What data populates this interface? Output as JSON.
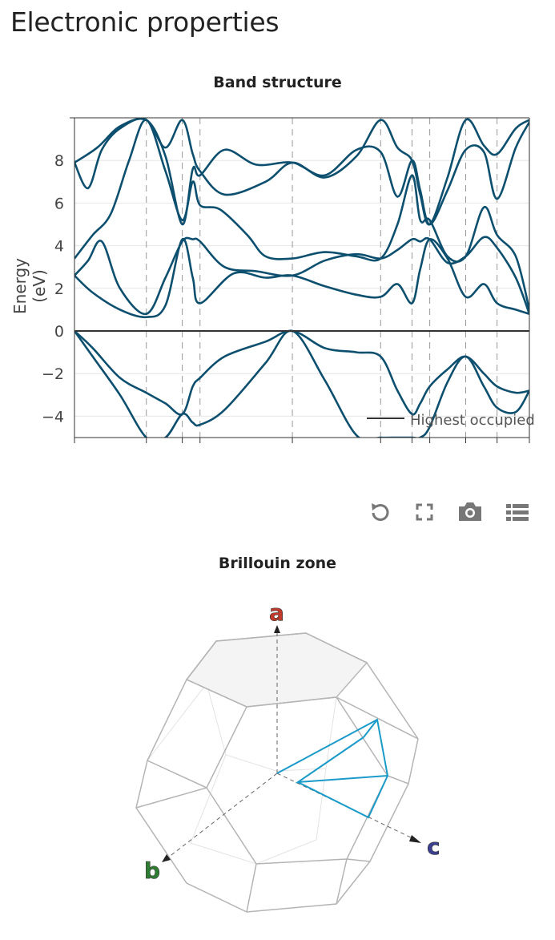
{
  "page": {
    "title": "Electronic properties"
  },
  "band_chart": {
    "title": "Band structure",
    "ylabel": "Energy (eV)",
    "legend": "Highest occupied",
    "toolbar": [
      "reset-icon",
      "fullscreen-icon",
      "camera-icon",
      "list-icon"
    ]
  },
  "chart_data": {
    "type": "line",
    "title": "Band structure",
    "ylabel": "Energy (eV)",
    "xlabel": "",
    "ylim": [
      -5,
      10
    ],
    "yticks": [
      -4,
      -2,
      0,
      2,
      4,
      6,
      8
    ],
    "ytick_labels": [
      "−4",
      "−2",
      "0",
      "2",
      "4",
      "6",
      "8"
    ],
    "xlim": [
      0,
      1
    ],
    "kpoint_dividers": [
      0.158,
      0.237,
      0.276,
      0.479,
      0.673,
      0.742,
      0.781,
      0.86,
      0.929
    ],
    "reference_line": {
      "name": "Highest occupied",
      "y": 0
    },
    "legend_position": "bottom-right",
    "grid": true,
    "series": [
      {
        "x": [
          0,
          0.04,
          0.1,
          0.158,
          0.2,
          0.237,
          0.26,
          0.276,
          0.35,
          0.42,
          0.479,
          0.55,
          0.62,
          0.673,
          0.71,
          0.742,
          0.76,
          0.781,
          0.82,
          0.86,
          0.9,
          0.929,
          0.97,
          1.0
        ],
        "y": [
          2.6,
          1.8,
          1.0,
          0.65,
          1.2,
          4.3,
          2.5,
          1.3,
          2.7,
          2.5,
          2.6,
          2.1,
          1.7,
          1.6,
          2.2,
          1.3,
          2.9,
          4.3,
          3.4,
          1.6,
          2.2,
          1.3,
          1.0,
          0.8
        ]
      },
      {
        "x": [
          0,
          0.03,
          0.06,
          0.1,
          0.158,
          0.2,
          0.237,
          0.26,
          0.276,
          0.33,
          0.4,
          0.479,
          0.55,
          0.62,
          0.673,
          0.71,
          0.742,
          0.76,
          0.781,
          0.82,
          0.86,
          0.9,
          0.929,
          0.97,
          1.0
        ],
        "y": [
          2.6,
          3.3,
          4.2,
          2.0,
          0.8,
          2.5,
          4.2,
          4.3,
          4.2,
          3.0,
          2.8,
          2.6,
          3.3,
          3.6,
          3.4,
          3.8,
          4.3,
          4.2,
          4.3,
          3.2,
          3.5,
          4.4,
          3.9,
          2.5,
          0.8
        ]
      },
      {
        "x": [
          0,
          0.04,
          0.08,
          0.12,
          0.158,
          0.2,
          0.237,
          0.26,
          0.276,
          0.32,
          0.38,
          0.42,
          0.479,
          0.55,
          0.62,
          0.673,
          0.71,
          0.742,
          0.76,
          0.781,
          0.82,
          0.86,
          0.9,
          0.929,
          0.97,
          1.0
        ],
        "y": [
          3.4,
          4.5,
          5.5,
          8.0,
          9.9,
          7.5,
          5.2,
          7.0,
          5.9,
          5.7,
          4.5,
          3.5,
          3.4,
          3.7,
          3.5,
          3.4,
          5.0,
          7.3,
          5.2,
          5.2,
          3.5,
          3.5,
          5.8,
          4.5,
          3.5,
          1.0
        ]
      },
      {
        "x": [
          0,
          0.03,
          0.06,
          0.1,
          0.158,
          0.2,
          0.237,
          0.26,
          0.276,
          0.33,
          0.4,
          0.479,
          0.55,
          0.62,
          0.673,
          0.71,
          0.742,
          0.76,
          0.781,
          0.82,
          0.86,
          0.9,
          0.929,
          0.97,
          1.0
        ],
        "y": [
          7.9,
          6.7,
          8.5,
          9.5,
          9.9,
          8.2,
          5.0,
          7.6,
          7.3,
          8.5,
          7.8,
          7.9,
          7.3,
          8.5,
          8.4,
          6.3,
          8.0,
          6.6,
          5.0,
          6.6,
          8.5,
          8.4,
          6.2,
          8.6,
          9.8
        ]
      },
      {
        "x": [
          0,
          0.05,
          0.1,
          0.158,
          0.2,
          0.237,
          0.26,
          0.276,
          0.33,
          0.42,
          0.479,
          0.55,
          0.62,
          0.673,
          0.71,
          0.742,
          0.76,
          0.781,
          0.82,
          0.86,
          0.9,
          0.929,
          0.97,
          1.0
        ],
        "y": [
          7.9,
          8.6,
          9.6,
          9.9,
          8.6,
          9.9,
          8.3,
          7.5,
          6.4,
          7.0,
          7.9,
          7.2,
          8.2,
          9.9,
          8.6,
          8.0,
          6.4,
          5.0,
          7.2,
          9.9,
          8.7,
          8.3,
          9.5,
          9.9
        ]
      },
      {
        "x": [
          0,
          0.04,
          0.1,
          0.158,
          0.2,
          0.237,
          0.26,
          0.276,
          0.33,
          0.42,
          0.479,
          0.55,
          0.62,
          0.673,
          0.71,
          0.742,
          0.76,
          0.781,
          0.82,
          0.86,
          0.9,
          0.929,
          0.97,
          1.0
        ],
        "y": [
          0,
          -0.8,
          -2.2,
          -2.9,
          -3.4,
          -3.9,
          -2.6,
          -2.2,
          -1.2,
          -0.5,
          0,
          -0.8,
          -1.0,
          -1.2,
          -2.8,
          -3.9,
          -3.4,
          -2.6,
          -1.8,
          -1.2,
          -2.0,
          -2.6,
          -2.9,
          -2.8
        ]
      },
      {
        "x": [
          0,
          0.04,
          0.1,
          0.158,
          0.2,
          0.237,
          0.26,
          0.276,
          0.33,
          0.42,
          0.479,
          0.55,
          0.62,
          0.673,
          0.71,
          0.742,
          0.76,
          0.781,
          0.82,
          0.86,
          0.9,
          0.929,
          0.97,
          1.0
        ],
        "y": [
          0,
          -1.2,
          -3.0,
          -5.0,
          -5.0,
          -3.9,
          -4.3,
          -4.4,
          -3.7,
          -1.5,
          0,
          -2.3,
          -4.9,
          -5.0,
          -5.0,
          -5.0,
          -5.0,
          -4.5,
          -2.4,
          -1.2,
          -2.6,
          -3.6,
          -3.8,
          -2.8
        ]
      }
    ]
  },
  "bz_chart": {
    "title": "Brillouin zone",
    "axes": {
      "a": "a",
      "b": "b",
      "c": "c"
    },
    "colors": {
      "a": "#c0392b",
      "b": "#2e7d32",
      "c": "#3b3f8f",
      "path": "#1a9ac9"
    }
  }
}
